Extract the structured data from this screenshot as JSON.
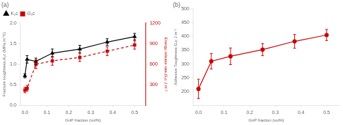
{
  "chart_data": [
    {
      "type": "line",
      "title": "(a)",
      "xlabel": "GnP fraction (vol%)",
      "ylabel": "Fracture toughness,K₁c (MPa.m⁻½)",
      "y2label": "Energy release rate,G₁c J.m⁻²",
      "x": [
        0.0,
        0.01,
        0.05,
        0.125,
        0.25,
        0.375,
        0.5
      ],
      "series": [
        {
          "name": "K₁c",
          "color": "#000000",
          "marker": "triangle",
          "line_style": "solid",
          "values": [
            0.72,
            1.12,
            1.07,
            1.27,
            1.37,
            1.54,
            1.67
          ],
          "yerr": [
            0.05,
            0.09,
            0.08,
            0.1,
            0.09,
            0.08,
            0.08
          ]
        },
        {
          "name": "G₁c",
          "color": "#cc0000",
          "marker": "square",
          "line_style": "dashed",
          "axis": "y2",
          "values": [
            225,
            250,
            600,
            650,
            700,
            790,
            880
          ],
          "yerr": [
            40,
            40,
            65,
            65,
            60,
            65,
            60
          ]
        }
      ],
      "xlim": [
        -0.02,
        0.55
      ],
      "xticks": [
        {
          "value": 0.0,
          "label": "0.0"
        },
        0.1,
        0.2,
        0.3,
        0.4,
        0.5
      ],
      "ylim": [
        0.0,
        2.0
      ],
      "yticks": [
        {
          "value": 0.0,
          "label": "0.0"
        },
        0.5,
        {
          "value": 1.0,
          "label": "1.0"
        },
        1.5,
        {
          "value": 2.0,
          "label": "2.0"
        }
      ],
      "y2lim": [
        0,
        1200
      ],
      "y2ticks": [
        300,
        600,
        900,
        1200
      ],
      "grid": false,
      "legend": "upper left"
    },
    {
      "type": "line",
      "title": "(b)",
      "xlabel": "GnP fraction (vol%)",
      "ylabel": "Adhesive Toughness G₁c J.m⁻²",
      "x": [
        0.0,
        0.05,
        0.125,
        0.25,
        0.375,
        0.5
      ],
      "series": [
        {
          "color": "#cc0000",
          "marker": "circle",
          "line_style": "solid",
          "values": [
            210,
            310,
            328,
            352,
            382,
            405
          ],
          "yerr": [
            35,
            28,
            30,
            22,
            25,
            20
          ]
        }
      ],
      "xlim": [
        -0.02,
        0.55
      ],
      "xticks": [
        {
          "value": 0.0,
          "label": "0.0"
        },
        0.1,
        0.2,
        0.3,
        0.4,
        0.5
      ],
      "ylim": [
        150,
        500
      ],
      "yticks": [
        200,
        250,
        300,
        350,
        400,
        450,
        500
      ],
      "grid": false
    }
  ]
}
